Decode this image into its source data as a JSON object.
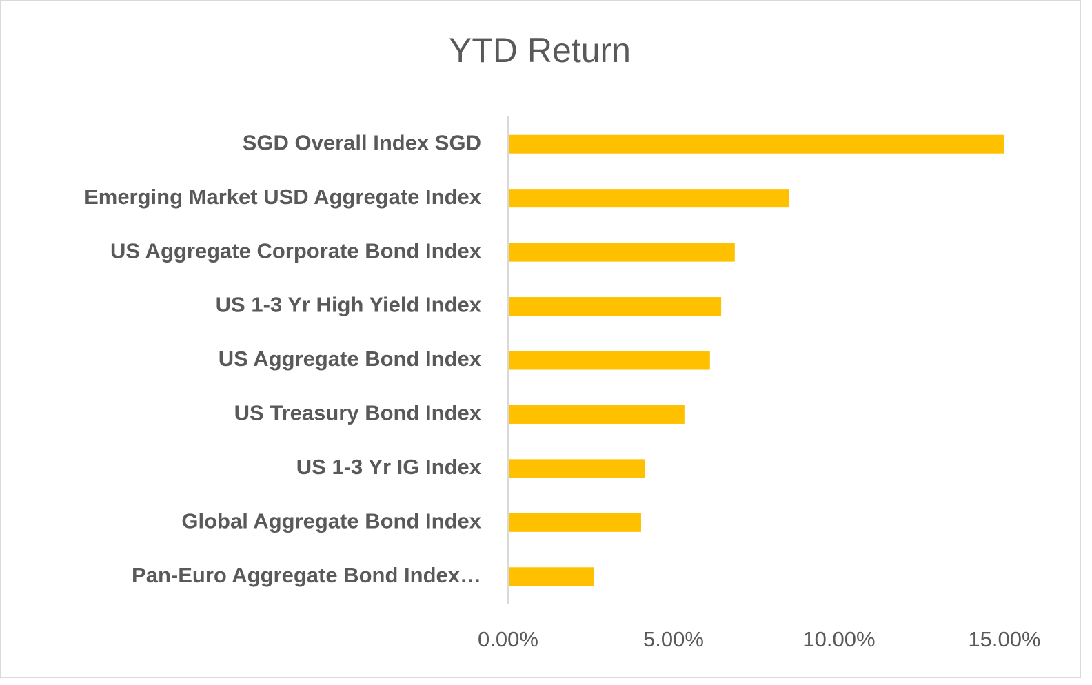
{
  "chart_data": {
    "type": "bar",
    "orientation": "horizontal",
    "title": "YTD Return",
    "categories": [
      "SGD Overall Index SGD",
      "Emerging Market USD Aggregate Index",
      "US Aggregate Corporate Bond Index",
      "US 1-3 Yr High Yield Index",
      "US Aggregate Bond Index",
      "US Treasury Bond Index",
      "US 1-3 Yr IG Index",
      "Global Aggregate Bond Index",
      "Pan-Euro Aggregate Bond Index…"
    ],
    "values": [
      15.0,
      8.5,
      6.85,
      6.44,
      6.1,
      5.33,
      4.13,
      4.02,
      2.6
    ],
    "color": "#ffc000",
    "xlim": [
      0,
      15
    ],
    "xticks": [
      {
        "value": 0,
        "label": "0.00%"
      },
      {
        "value": 5,
        "label": "5.00%"
      },
      {
        "value": 10,
        "label": "10.00%"
      },
      {
        "value": 15,
        "label": "15.00%"
      }
    ],
    "grid": false
  }
}
